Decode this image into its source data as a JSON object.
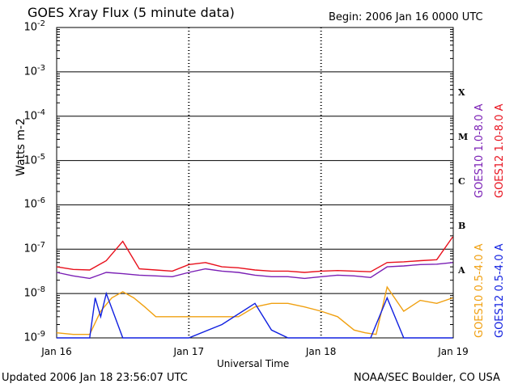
{
  "header": {
    "title": "GOES Xray Flux (5 minute data)",
    "begin": "Begin:  2006 Jan 16 0000 UTC"
  },
  "footer": {
    "updated": "Updated 2006 Jan 18 23:56:07 UTC",
    "credit": "NOAA/SEC Boulder, CO USA"
  },
  "chart_data": {
    "type": "line",
    "title": "GOES Xray Flux (5 minute data)",
    "xlabel": "Universal Time",
    "ylabel": "Watts m-2",
    "yscale": "log",
    "ylim": [
      1e-09,
      0.01
    ],
    "x_ticks": [
      "Jan 16",
      "Jan 17",
      "Jan 18",
      "Jan 19"
    ],
    "xlim": [
      "2006-01-16 00:00",
      "2006-01-19 00:00"
    ],
    "y_tick_labels": [
      {
        "base": "10",
        "exp": "-2"
      },
      {
        "base": "10",
        "exp": "-3"
      },
      {
        "base": "10",
        "exp": "-4"
      },
      {
        "base": "10",
        "exp": "-5"
      },
      {
        "base": "10",
        "exp": "-6"
      },
      {
        "base": "10",
        "exp": "-7"
      },
      {
        "base": "10",
        "exp": "-8"
      },
      {
        "base": "10",
        "exp": "-9"
      }
    ],
    "flare_classes": [
      "X",
      "M",
      "C",
      "B",
      "A"
    ],
    "grid": "horizontal",
    "series": [
      {
        "name": "GOES10 1.0-8.0 A",
        "color": "#7a1fb5",
        "x": [
          "2006-01-16 00:00",
          "2006-01-16 03:00",
          "2006-01-16 06:00",
          "2006-01-16 09:00",
          "2006-01-16 12:00",
          "2006-01-16 15:00",
          "2006-01-16 18:00",
          "2006-01-16 21:00",
          "2006-01-17 00:00",
          "2006-01-17 03:00",
          "2006-01-17 06:00",
          "2006-01-17 09:00",
          "2006-01-17 12:00",
          "2006-01-17 15:00",
          "2006-01-17 18:00",
          "2006-01-17 21:00",
          "2006-01-18 00:00",
          "2006-01-18 03:00",
          "2006-01-18 06:00",
          "2006-01-18 09:00",
          "2006-01-18 12:00",
          "2006-01-18 15:00",
          "2006-01-18 18:00",
          "2006-01-18 21:00",
          "2006-01-18 23:55"
        ],
        "values": [
          3e-08,
          2.5e-08,
          2.2e-08,
          3e-08,
          2.8e-08,
          2.6e-08,
          2.5e-08,
          2.4e-08,
          3e-08,
          3.6e-08,
          3.2e-08,
          3e-08,
          2.6e-08,
          2.4e-08,
          2.4e-08,
          2.2e-08,
          2.4e-08,
          2.6e-08,
          2.5e-08,
          2.3e-08,
          4e-08,
          4.2e-08,
          4.5e-08,
          4.6e-08,
          5e-08
        ]
      },
      {
        "name": "GOES12 1.0-8.0 A",
        "color": "#e8101c",
        "x": [
          "2006-01-16 00:00",
          "2006-01-16 03:00",
          "2006-01-16 06:00",
          "2006-01-16 09:00",
          "2006-01-16 12:00",
          "2006-01-16 15:00",
          "2006-01-16 18:00",
          "2006-01-16 21:00",
          "2006-01-17 00:00",
          "2006-01-17 03:00",
          "2006-01-17 06:00",
          "2006-01-17 09:00",
          "2006-01-17 12:00",
          "2006-01-17 15:00",
          "2006-01-17 18:00",
          "2006-01-17 21:00",
          "2006-01-18 00:00",
          "2006-01-18 03:00",
          "2006-01-18 06:00",
          "2006-01-18 09:00",
          "2006-01-18 12:00",
          "2006-01-18 15:00",
          "2006-01-18 18:00",
          "2006-01-18 21:00",
          "2006-01-18 23:55"
        ],
        "values": [
          4e-08,
          3.5e-08,
          3.4e-08,
          5.5e-08,
          1.5e-07,
          3.6e-08,
          3.4e-08,
          3.2e-08,
          4.5e-08,
          5e-08,
          4e-08,
          3.8e-08,
          3.4e-08,
          3.2e-08,
          3.2e-08,
          3e-08,
          3.2e-08,
          3.3e-08,
          3.2e-08,
          3.1e-08,
          5e-08,
          5.2e-08,
          5.5e-08,
          5.8e-08,
          1.9e-07
        ]
      },
      {
        "name": "GOES10 0.5-4.0 A",
        "color": "#f0a010",
        "x": [
          "2006-01-16 00:00",
          "2006-01-16 03:00",
          "2006-01-16 06:00",
          "2006-01-16 08:00",
          "2006-01-16 10:00",
          "2006-01-16 12:00",
          "2006-01-16 14:00",
          "2006-01-16 16:00",
          "2006-01-16 18:00",
          "2006-01-16 21:00",
          "2006-01-17 00:00",
          "2006-01-17 03:00",
          "2006-01-17 06:00",
          "2006-01-17 09:00",
          "2006-01-17 12:00",
          "2006-01-17 15:00",
          "2006-01-17 18:00",
          "2006-01-17 21:00",
          "2006-01-18 00:00",
          "2006-01-18 03:00",
          "2006-01-18 06:00",
          "2006-01-18 08:00",
          "2006-01-18 10:00",
          "2006-01-18 12:00",
          "2006-01-18 15:00",
          "2006-01-18 18:00",
          "2006-01-18 21:00",
          "2006-01-18 23:55"
        ],
        "values": [
          1.3e-09,
          1.2e-09,
          1.2e-09,
          4e-09,
          8e-09,
          1.1e-08,
          8e-09,
          5e-09,
          3e-09,
          3e-09,
          3e-09,
          3e-09,
          3e-09,
          3e-09,
          5e-09,
          6e-09,
          6e-09,
          5e-09,
          4e-09,
          3e-09,
          1.5e-09,
          1.3e-09,
          1.2e-09,
          1.4e-08,
          4e-09,
          7e-09,
          6e-09,
          8e-09
        ]
      },
      {
        "name": "GOES12 0.5-4.0 A",
        "color": "#1020e0",
        "x": [
          "2006-01-16 00:00",
          "2006-01-16 06:00",
          "2006-01-16 07:00",
          "2006-01-16 08:00",
          "2006-01-16 09:00",
          "2006-01-16 12:00",
          "2006-01-16 15:00",
          "2006-01-16 18:00",
          "2006-01-17 00:00",
          "2006-01-17 06:00",
          "2006-01-17 12:00",
          "2006-01-17 15:00",
          "2006-01-17 18:00",
          "2006-01-18 00:00",
          "2006-01-18 03:00",
          "2006-01-18 06:00",
          "2006-01-18 09:00",
          "2006-01-18 12:00",
          "2006-01-18 15:00",
          "2006-01-18 18:00",
          "2006-01-18 21:00",
          "2006-01-18 23:55"
        ],
        "values": [
          1e-09,
          1e-09,
          8e-09,
          3e-09,
          1e-08,
          1e-09,
          1e-09,
          1e-09,
          1e-09,
          2e-09,
          6e-09,
          1.5e-09,
          1e-09,
          1e-09,
          1e-09,
          1e-09,
          1e-09,
          8e-09,
          1e-09,
          1e-09,
          1e-09,
          1e-09
        ]
      }
    ]
  }
}
